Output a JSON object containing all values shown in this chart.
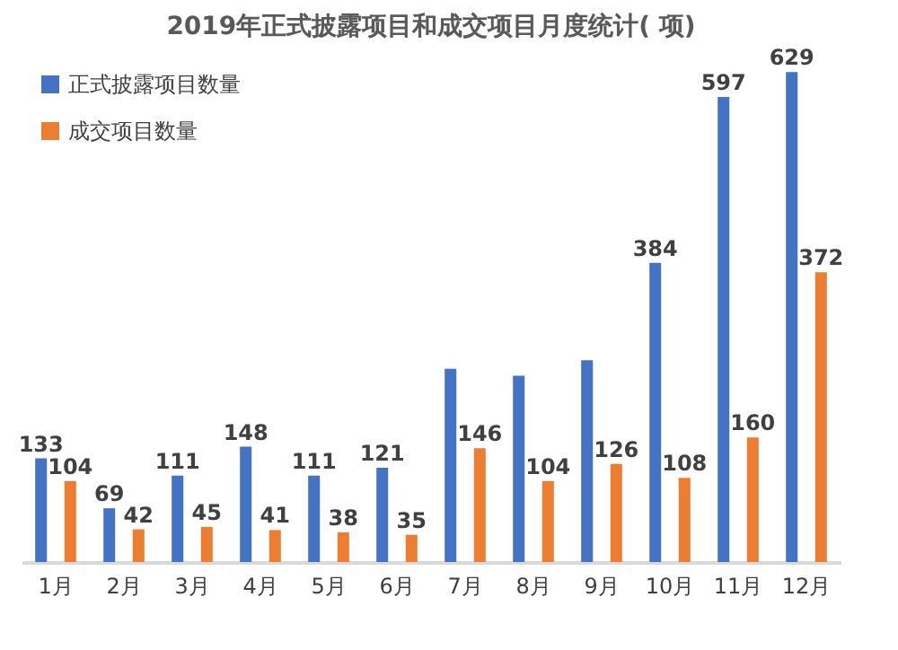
{
  "chart_data": {
    "type": "bar",
    "title": "2019年正式披露项目和成交项目月度统计( 项)",
    "categories": [
      "1月",
      "2月",
      "3月",
      "4月",
      "5月",
      "6月",
      "7月",
      "8月",
      "9月",
      "10月",
      "11月",
      "12月"
    ],
    "series": [
      {
        "name": "正式披露项目数量",
        "color": "#4472c4",
        "values": [
          133,
          69,
          111,
          148,
          111,
          121,
          248,
          239,
          259,
          384,
          597,
          629
        ],
        "value_labels": [
          "133",
          "69",
          "111",
          "148",
          "111",
          "121",
          null,
          null,
          null,
          "384",
          "597",
          "629"
        ]
      },
      {
        "name": "成交项目数量",
        "color": "#ed7d31",
        "values": [
          104,
          42,
          45,
          41,
          38,
          35,
          146,
          104,
          126,
          108,
          160,
          372
        ],
        "value_labels": [
          "104",
          "42",
          "45",
          "41",
          "38",
          "35",
          "146",
          "104",
          "126",
          "108",
          "160",
          "372"
        ]
      }
    ],
    "legend": "top left"
  }
}
